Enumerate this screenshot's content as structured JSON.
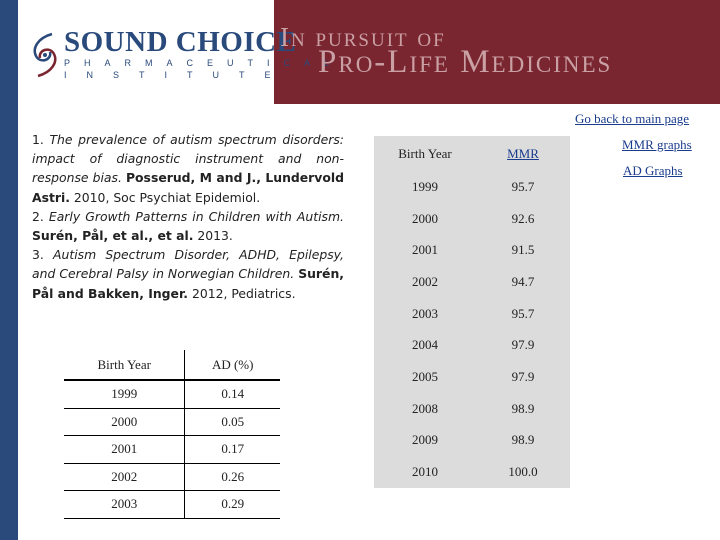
{
  "header": {
    "logo_main": "SOUND CHOICE",
    "logo_sub1": "PHARMACEUTICAL",
    "logo_sub2": "INSTITUTE",
    "tagline_line1": "In pursuit of",
    "tagline_line2": "Pro-Life Medicines",
    "colors": {
      "left_bar": "#2a4a7c",
      "banner": "#7a2630",
      "tagline": "#c9a0a4",
      "link": "#1a3c8c"
    }
  },
  "nav": {
    "back_label": "Go back to main page",
    "mmr_graphs_label": "MMR graphs",
    "ad_graphs_label": "AD Graphs"
  },
  "references": [
    {
      "number": "1.",
      "title": "The prevalence of autism spectrum disorders: impact of diagnostic instrument and non-response bias.",
      "authors": "Posserud, M and J., Lundervold Astri.",
      "details": "2010, Soc Psychiat Epidemiol."
    },
    {
      "number": "2.",
      "title": "Early Growth Patterns in Children with Autism.",
      "authors": "Surén, Pål, et al., et al.",
      "details": "2013."
    },
    {
      "number": "3.",
      "title": "Autism Spectrum Disorder, ADHD, Epilepsy, and Cerebral Palsy in Norwegian Children.",
      "authors": "Surén, Pål and Bakken, Inger.",
      "details": "2012, Pediatrics."
    }
  ],
  "ad_table": {
    "headers": [
      "Birth Year",
      "AD (%)"
    ],
    "rows": [
      [
        "1999",
        "0.14"
      ],
      [
        "2000",
        "0.05"
      ],
      [
        "2001",
        "0.17"
      ],
      [
        "2002",
        "0.26"
      ],
      [
        "2003",
        "0.29"
      ]
    ]
  },
  "mmr_table": {
    "headers": [
      "Birth Year",
      "MMR"
    ],
    "rows": [
      [
        "1999",
        "95.7"
      ],
      [
        "2000",
        "92.6"
      ],
      [
        "2001",
        "91.5"
      ],
      [
        "2002",
        "94.7"
      ],
      [
        "2003",
        "95.7"
      ],
      [
        "2004",
        "97.9"
      ],
      [
        "2005",
        "97.9"
      ],
      [
        "2008",
        "98.9"
      ],
      [
        "2009",
        "98.9"
      ],
      [
        "2010",
        "100.0"
      ]
    ]
  }
}
